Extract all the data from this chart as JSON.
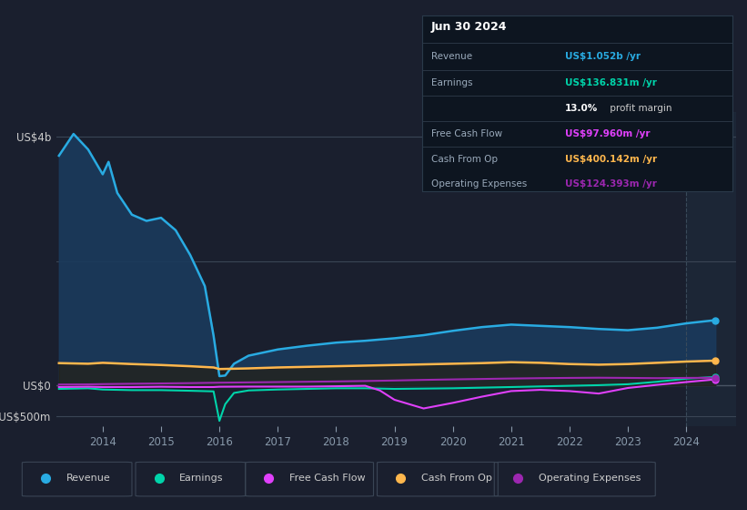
{
  "bg_color": "#1a1f2e",
  "grid_color": "#252d3d",
  "text_color": "#8899aa",
  "ylim": [
    -650,
    4400
  ],
  "xlim": [
    2013.2,
    2024.85
  ],
  "yticks_labels": [
    "US$4b",
    "",
    "US$0",
    "-US$500m"
  ],
  "yticks_values": [
    4000,
    2000,
    0,
    -500
  ],
  "xtick_labels": [
    "2014",
    "2015",
    "2016",
    "2017",
    "2018",
    "2019",
    "2020",
    "2021",
    "2022",
    "2023",
    "2024"
  ],
  "xtick_values": [
    2014,
    2015,
    2016,
    2017,
    2018,
    2019,
    2020,
    2021,
    2022,
    2023,
    2024
  ],
  "legend_items": [
    "Revenue",
    "Earnings",
    "Free Cash Flow",
    "Cash From Op",
    "Operating Expenses"
  ],
  "legend_colors": [
    "#29abe2",
    "#00d4aa",
    "#e040fb",
    "#ffb74d",
    "#9c27b0"
  ],
  "revenue_fill": "#1a3a5c",
  "revenue_line": "#29abe2",
  "earnings_line": "#00d4aa",
  "fcf_line": "#e040fb",
  "cop_line": "#ffb74d",
  "cop_fill": "#2a2010",
  "opex_line": "#9c27b0",
  "tooltip_bg": "#0d1520",
  "tooltip_border": "#2a3a4a",
  "tooltip_title": "Jun 30 2024",
  "revenue_x": [
    2013.25,
    2013.5,
    2013.75,
    2014.0,
    2014.1,
    2014.25,
    2014.5,
    2014.75,
    2015.0,
    2015.25,
    2015.5,
    2015.75,
    2015.9,
    2016.0,
    2016.1,
    2016.25,
    2016.5,
    2016.75,
    2017.0,
    2017.5,
    2018.0,
    2018.5,
    2019.0,
    2019.5,
    2020.0,
    2020.5,
    2021.0,
    2021.5,
    2022.0,
    2022.5,
    2023.0,
    2023.5,
    2024.0,
    2024.5
  ],
  "revenue_y": [
    3700,
    4050,
    3800,
    3400,
    3600,
    3100,
    2750,
    2650,
    2700,
    2500,
    2100,
    1600,
    800,
    150,
    160,
    350,
    480,
    530,
    580,
    640,
    690,
    720,
    760,
    810,
    880,
    940,
    980,
    960,
    940,
    910,
    890,
    930,
    1000,
    1052
  ],
  "cop_x": [
    2013.25,
    2013.75,
    2014.0,
    2014.5,
    2015.0,
    2015.5,
    2015.9,
    2016.0,
    2016.5,
    2017.0,
    2017.5,
    2018.0,
    2018.5,
    2019.0,
    2019.5,
    2020.0,
    2020.5,
    2021.0,
    2021.5,
    2022.0,
    2022.5,
    2023.0,
    2023.5,
    2024.0,
    2024.5
  ],
  "cop_y": [
    360,
    350,
    365,
    345,
    330,
    310,
    290,
    265,
    275,
    290,
    300,
    310,
    320,
    330,
    340,
    350,
    360,
    375,
    365,
    345,
    335,
    345,
    365,
    385,
    400
  ],
  "earn_x": [
    2013.25,
    2013.75,
    2014.0,
    2014.5,
    2015.0,
    2015.5,
    2015.9,
    2016.0,
    2016.1,
    2016.25,
    2016.5,
    2017.0,
    2017.5,
    2018.0,
    2018.5,
    2019.0,
    2019.5,
    2020.0,
    2020.5,
    2021.0,
    2021.5,
    2022.0,
    2022.5,
    2023.0,
    2023.5,
    2024.0,
    2024.5
  ],
  "earn_y": [
    -55,
    -45,
    -65,
    -75,
    -75,
    -85,
    -95,
    -570,
    -300,
    -120,
    -80,
    -65,
    -55,
    -45,
    -45,
    -55,
    -50,
    -45,
    -35,
    -25,
    -15,
    -5,
    5,
    20,
    60,
    110,
    137
  ],
  "fcf_x": [
    2013.25,
    2013.75,
    2014.0,
    2014.5,
    2015.0,
    2015.5,
    2015.9,
    2016.0,
    2016.5,
    2017.0,
    2017.5,
    2018.0,
    2018.5,
    2018.75,
    2019.0,
    2019.5,
    2020.0,
    2020.5,
    2021.0,
    2021.5,
    2022.0,
    2022.5,
    2023.0,
    2023.5,
    2024.0,
    2024.5
  ],
  "fcf_y": [
    -25,
    -20,
    -25,
    -25,
    -20,
    -25,
    -25,
    -20,
    -18,
    -18,
    -18,
    -12,
    -5,
    -80,
    -230,
    -370,
    -280,
    -180,
    -90,
    -70,
    -90,
    -130,
    -40,
    10,
    55,
    98
  ],
  "opex_x": [
    2013.25,
    2013.75,
    2014.0,
    2014.5,
    2015.0,
    2015.5,
    2016.0,
    2016.5,
    2017.0,
    2017.5,
    2018.0,
    2018.5,
    2019.0,
    2019.5,
    2020.0,
    2020.5,
    2021.0,
    2021.5,
    2022.0,
    2022.5,
    2023.0,
    2023.5,
    2024.0,
    2024.5
  ],
  "opex_y": [
    15,
    18,
    22,
    28,
    33,
    38,
    45,
    50,
    55,
    60,
    65,
    72,
    80,
    90,
    98,
    105,
    112,
    118,
    122,
    125,
    122,
    118,
    122,
    124
  ]
}
